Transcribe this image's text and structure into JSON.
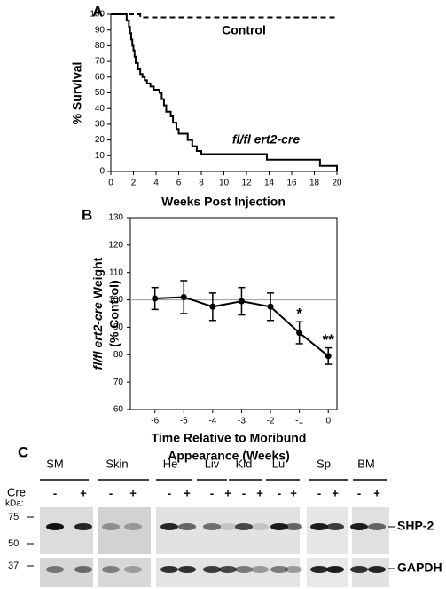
{
  "chart_data": [
    {
      "type": "step",
      "panel": "A",
      "ylabel": "% Survival",
      "xlabel": "Weeks Post Injection",
      "xlim": [
        0,
        20
      ],
      "ylim": [
        0,
        100
      ],
      "xticks": [
        0,
        2,
        4,
        6,
        8,
        10,
        12,
        14,
        16,
        18,
        20
      ],
      "yticks": [
        0,
        10,
        20,
        30,
        40,
        50,
        60,
        70,
        80,
        90,
        100
      ],
      "series": [
        {
          "name": "Control",
          "color": "#000000",
          "dash": true,
          "x": [
            0,
            1.6,
            2.6,
            20
          ],
          "values": [
            100,
            100,
            98,
            98
          ]
        },
        {
          "name": "fl/fl ert2-cre",
          "color": "#000000",
          "dash": false,
          "x": [
            0,
            1.4,
            1.6,
            1.7,
            1.8,
            1.9,
            2.0,
            2.1,
            2.2,
            2.4,
            2.6,
            2.8,
            3.0,
            3.2,
            3.5,
            3.8,
            4.3,
            4.5,
            4.7,
            4.9,
            5.3,
            5.5,
            5.8,
            6.0,
            6.8,
            7.2,
            7.6,
            8.0,
            13.8,
            18.5,
            20
          ],
          "values": [
            100,
            96,
            92,
            88,
            84,
            80,
            77,
            73,
            69,
            65,
            62,
            60,
            58,
            56,
            54,
            52,
            50,
            46,
            42,
            38,
            35,
            31,
            27,
            24,
            20,
            16,
            13,
            11,
            7.5,
            3.5,
            0
          ]
        }
      ]
    },
    {
      "type": "line",
      "panel": "B",
      "ylabel": {
        "italic": "fl/fl ert2-cre",
        "rest": "Weight",
        "line2": "(% Control)"
      },
      "xlabel": [
        "Time Relative to Moribund",
        "Appearance (Weeks)"
      ],
      "xlim": [
        -6.85,
        0.3
      ],
      "ylim": [
        60,
        130
      ],
      "xticks": [
        -6,
        -5,
        -4,
        -3,
        -2,
        -1,
        0
      ],
      "yticks": [
        60,
        70,
        80,
        90,
        100,
        110,
        120,
        130
      ],
      "reference": 100,
      "x": [
        -6,
        -5,
        -4,
        -3,
        -2,
        -1,
        0
      ],
      "values": [
        100.5,
        101,
        97.5,
        99.5,
        97.5,
        88,
        79.5
      ],
      "errors": [
        4,
        6,
        5,
        5,
        5,
        4,
        3
      ],
      "color": "#000000",
      "annotations": [
        {
          "x": -1,
          "text": "*"
        },
        {
          "x": 0,
          "text": "**"
        }
      ]
    }
  ],
  "blot": {
    "panel": "C",
    "tissues": [
      "SM",
      "Skin",
      "He",
      "Liv",
      "Kid",
      "Lu",
      "Sp",
      "BM"
    ],
    "cre_label": "Cre",
    "kda_label": "kDa:",
    "cre": [
      "-",
      "+",
      "-",
      "+",
      "-",
      "+",
      "-",
      "+",
      "-",
      "+",
      "-",
      "+",
      "-",
      "+",
      "-",
      "+"
    ],
    "markers": [
      "75",
      "50",
      "37"
    ],
    "proteins": [
      "SHP-2",
      "GAPDH"
    ]
  }
}
